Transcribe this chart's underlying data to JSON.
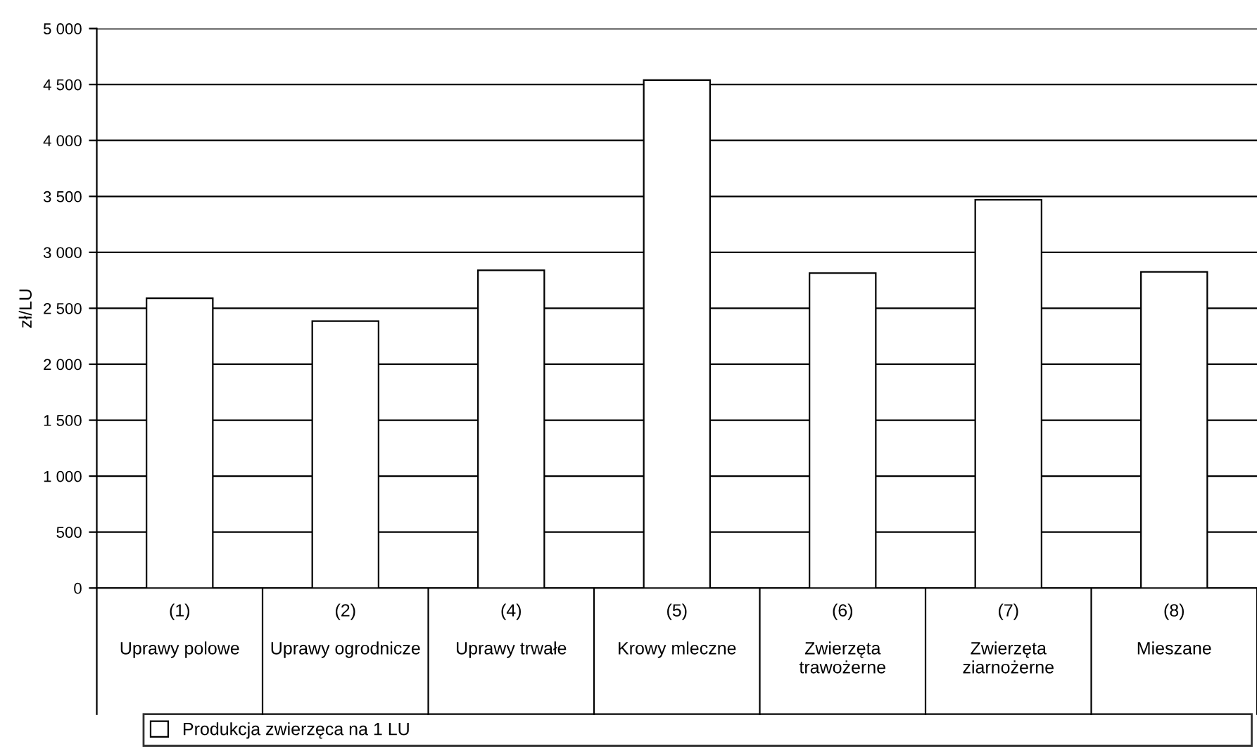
{
  "chart_data": {
    "type": "bar",
    "ylabel": "zł/LU",
    "categories": [
      "(1)\n\nUprawy polowe",
      "(2)\n\nUprawy ogrodnicze",
      "(4)\n\nUprawy trwałe",
      "(5)\n\nKrowy mleczne",
      "(6)\n\nZwierzęta\ntrawożerne",
      "(7)\n\nZwierzęta\nziarnożerne",
      "(8)\n\nMieszane"
    ],
    "series": [
      {
        "name": "Produkcja zwierzęca na 1 LU",
        "color": "#ffffff",
        "values": [
          2590,
          2385,
          2840,
          4540,
          2815,
          3470,
          2825
        ]
      }
    ],
    "ylim": [
      0,
      5000
    ],
    "yticks": [
      {
        "value": 0,
        "label": "0"
      },
      {
        "value": 500,
        "label": "500"
      },
      {
        "value": 1000,
        "label": "1 000"
      },
      {
        "value": 1500,
        "label": "1 500"
      },
      {
        "value": 2000,
        "label": "2 000"
      },
      {
        "value": 2500,
        "label": "2 500"
      },
      {
        "value": 3000,
        "label": "3 000"
      },
      {
        "value": 3500,
        "label": "3 500"
      },
      {
        "value": 4000,
        "label": "4 000"
      },
      {
        "value": 4500,
        "label": "4 500"
      },
      {
        "value": 5000,
        "label": "5 000"
      }
    ],
    "grid": "y",
    "legend": "bottom"
  }
}
